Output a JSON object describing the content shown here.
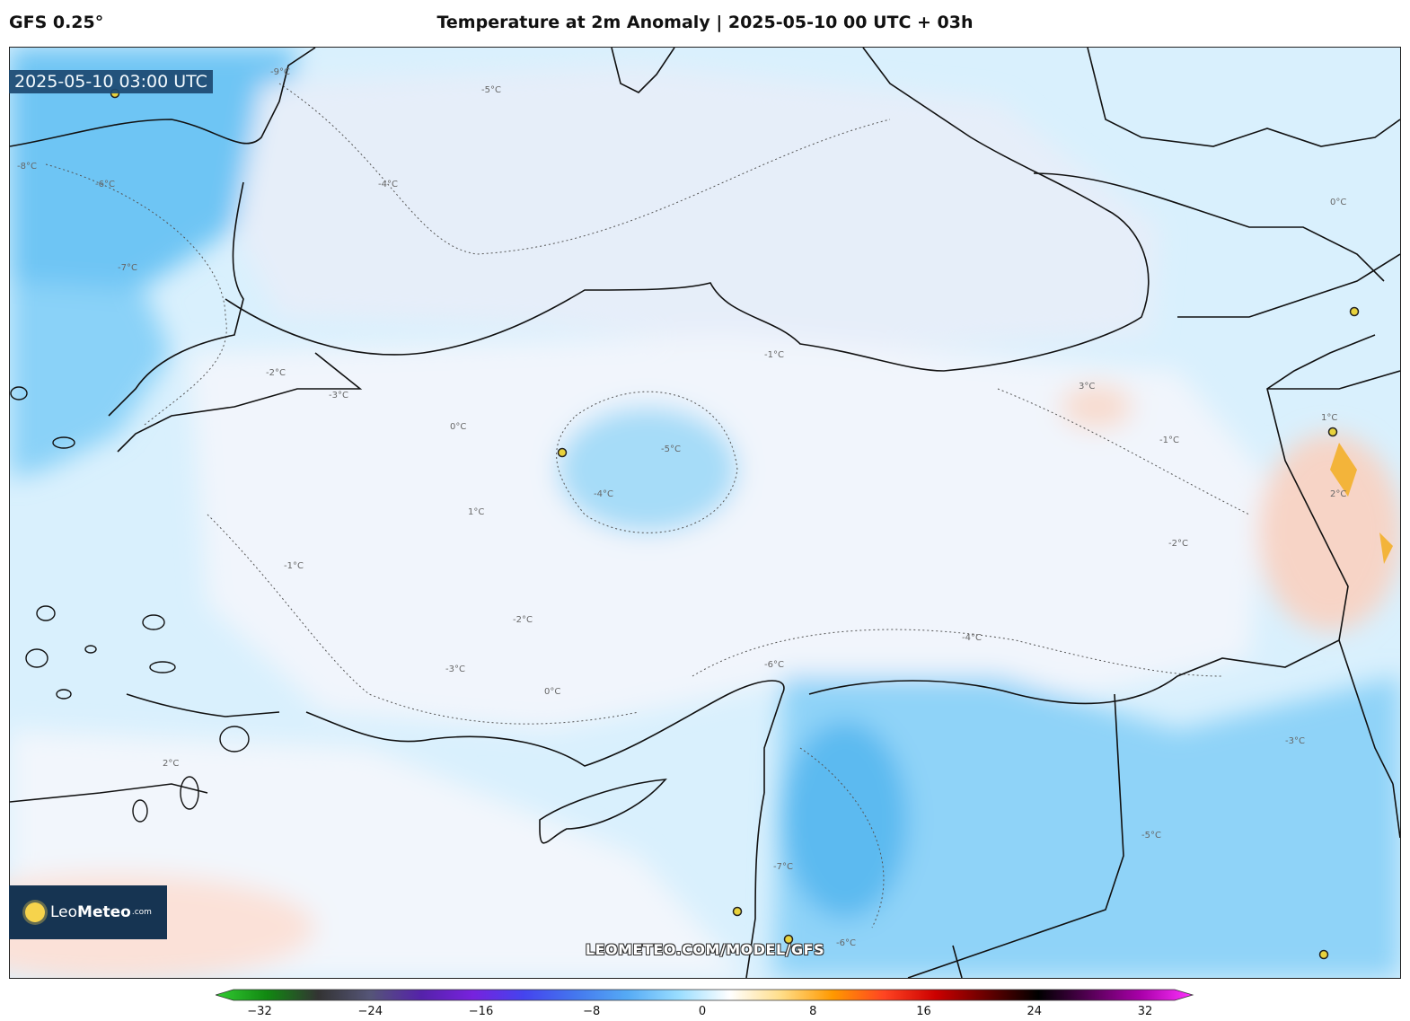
{
  "header": {
    "model": "GFS 0.25°",
    "title": "Temperature at 2m Anomaly | 2025-05-10 00 UTC + 03h"
  },
  "map": {
    "valid_time": "2025-05-10 03:00 UTC",
    "watermark": "LEOMETEO.COM/MODEL/GFS",
    "logo": {
      "name_light": "Leo",
      "name_bold": "Meteo",
      "suffix": ".com"
    },
    "contour_labels": [
      {
        "text": "-5°C"
      },
      {
        "text": "-4°C"
      },
      {
        "text": "-9°C"
      },
      {
        "text": "-8°C"
      },
      {
        "text": "-6°C"
      },
      {
        "text": "-7°C"
      },
      {
        "text": "-2°C"
      },
      {
        "text": "-3°C"
      },
      {
        "text": "-1°C"
      },
      {
        "text": "0°C"
      },
      {
        "text": "1°C"
      },
      {
        "text": "2°C"
      },
      {
        "text": "-5°C"
      },
      {
        "text": "-4°C"
      },
      {
        "text": "-1°C"
      },
      {
        "text": "0°C"
      },
      {
        "text": "-2°C"
      },
      {
        "text": "-3°C"
      },
      {
        "text": "-6°C"
      },
      {
        "text": "-7°C"
      },
      {
        "text": "-5°C"
      },
      {
        "text": "-4°C"
      },
      {
        "text": "-3°C"
      },
      {
        "text": "1°C"
      },
      {
        "text": "2°C"
      },
      {
        "text": "-1°C"
      },
      {
        "text": "0°C"
      },
      {
        "text": "-2°C"
      },
      {
        "text": "3°C"
      },
      {
        "text": "-6°C"
      }
    ],
    "colors": {
      "cold_strong": "#5ab8f0",
      "cold_mid": "#94d8fb",
      "cold_light": "#c8ebfc",
      "neutral": "#eef3fb",
      "warm_light": "#fbe3dc",
      "warm_mid": "#f7c1a8",
      "warm_dot": "#f3b43a",
      "coastline": "#111111"
    }
  },
  "colorbar": {
    "ticks": [
      "−32",
      "−24",
      "−16",
      "−8",
      "0",
      "8",
      "16",
      "24",
      "32"
    ],
    "min": -32,
    "max": 32,
    "stops": [
      "#33cc33",
      "#118811",
      "#333333",
      "#555577",
      "#5522aa",
      "#7722dd",
      "#4444ee",
      "#4477ee",
      "#55aaf5",
      "#99ddff",
      "#ffffff",
      "#ffdd88",
      "#ff9900",
      "#ff4422",
      "#cc0000",
      "#660000",
      "#000000",
      "#550055",
      "#aa00aa",
      "#ff33ff"
    ]
  }
}
